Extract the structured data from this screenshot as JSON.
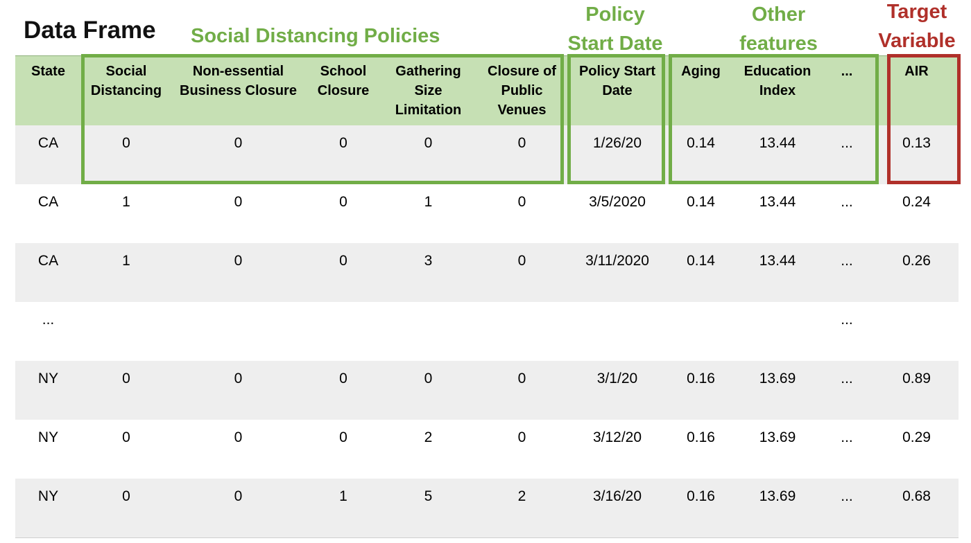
{
  "title": "Data Frame",
  "groups": {
    "social": "Social Distancing Policies",
    "policy_date_1": "Policy",
    "policy_date_2": "Start Date",
    "other_1": "Other",
    "other_2": "features",
    "target_1": "Target",
    "target_2": "Variable"
  },
  "headers": [
    "State",
    "Social Distancing",
    "Non-essential Business Closure",
    "School Closure",
    "Gathering Size Limitation",
    "Closure of Public Venues",
    "Policy Start Date",
    "Aging",
    "Education Index",
    "...",
    "AIR"
  ],
  "rows": [
    [
      "CA",
      "0",
      "0",
      "0",
      "0",
      "0",
      "1/26/20",
      "0.14",
      "13.44",
      "...",
      "0.13"
    ],
    [
      "CA",
      "1",
      "0",
      "0",
      "1",
      "0",
      "3/5/2020",
      "0.14",
      "13.44",
      "...",
      "0.24"
    ],
    [
      "CA",
      "1",
      "0",
      "0",
      "3",
      "0",
      "3/11/2020",
      "0.14",
      "13.44",
      "...",
      "0.26"
    ],
    [
      "...",
      "",
      "",
      "",
      "",
      "",
      "",
      "",
      "",
      "...",
      ""
    ],
    [
      "NY",
      "0",
      "0",
      "0",
      "0",
      "0",
      "3/1/20",
      "0.16",
      "13.69",
      "...",
      "0.89"
    ],
    [
      "NY",
      "0",
      "0",
      "0",
      "2",
      "0",
      "3/12/20",
      "0.16",
      "13.69",
      "...",
      "0.29"
    ],
    [
      "NY",
      "0",
      "0",
      "1",
      "5",
      "2",
      "3/16/20",
      "0.16",
      "13.69",
      "...",
      "0.68"
    ]
  ],
  "colors": {
    "header_fill": "#c6e0b4",
    "feature_box": "#71ad47",
    "target_box": "#b0302a",
    "row_shade": "#eeeeee"
  }
}
